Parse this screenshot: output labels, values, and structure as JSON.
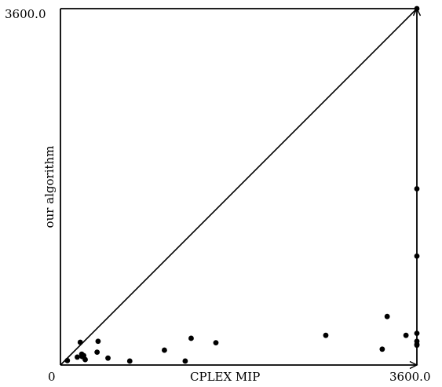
{
  "chart_data": {
    "type": "scatter",
    "title": "",
    "xlabel": "CPLEX MIP",
    "ylabel": "our algorithm",
    "xlim": [
      0,
      3600
    ],
    "ylim": [
      0,
      3600
    ],
    "tick_labels": {
      "origin": "0",
      "x_max": "3600.0",
      "y_max": "3600.0"
    },
    "diagonal_reference_line": true,
    "grid": false,
    "legend": "none",
    "point_color": "#000000",
    "line_color": "#000000",
    "series": [
      {
        "x": [
          70,
          170,
          200,
          215,
          220,
          235,
          250,
          370,
          380,
          480,
          700,
          1050,
          1260,
          1320,
          1570,
          2680,
          3250,
          3300,
          3490,
          3600,
          3600,
          3600,
          3600,
          3600,
          3600,
          3600
        ],
        "y": [
          45,
          80,
          230,
          110,
          85,
          95,
          55,
          130,
          240,
          70,
          40,
          150,
          40,
          270,
          225,
          300,
          160,
          490,
          300,
          3600,
          1780,
          1100,
          320,
          240,
          200,
          210
        ]
      }
    ]
  }
}
